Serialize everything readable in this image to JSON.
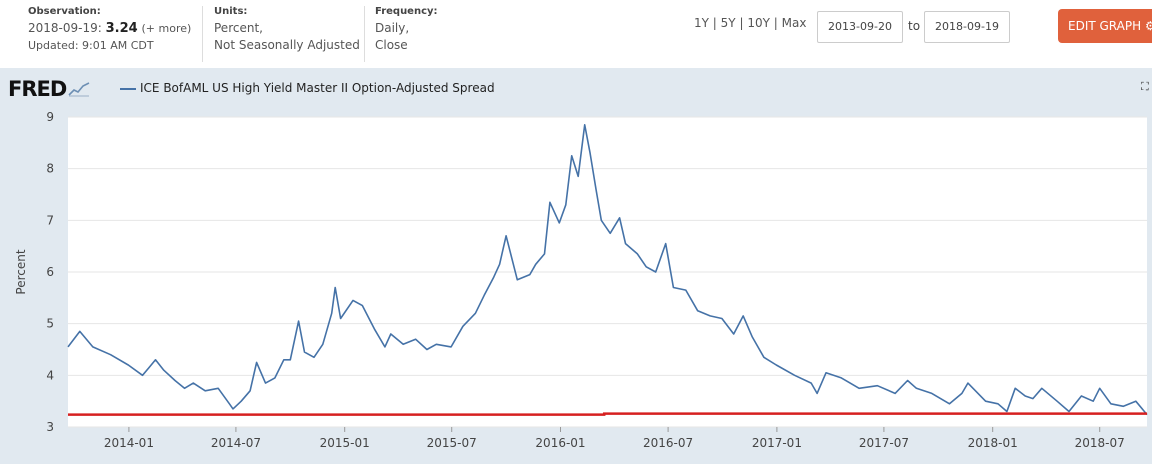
{
  "header": {
    "observation_label": "Observation:",
    "observation_date": "2018-09-19:",
    "observation_value": "3.24",
    "observation_more": "(+ more)",
    "updated": "Updated: 9:01 AM CDT",
    "units_label": "Units:",
    "units_line1": "Percent,",
    "units_line2": "Not Seasonally Adjusted",
    "frequency_label": "Frequency:",
    "frequency_line1": "Daily,",
    "frequency_line2": "Close",
    "range_1y": "1Y",
    "range_5y": "5Y",
    "range_10y": "10Y",
    "range_max": "Max",
    "range_sep": "|",
    "start_date": "2013-09-20",
    "to_label": "to",
    "end_date": "2018-09-19",
    "edit_button": "EDIT GRAPH",
    "gear_icon": "gear-icon"
  },
  "chart_data": {
    "type": "line",
    "logo": "FRED",
    "ylabel": "Percent",
    "ylim": [
      3,
      9
    ],
    "yticks": [
      3,
      4,
      5,
      6,
      7,
      8,
      9
    ],
    "xlim": [
      "2013-09-20",
      "2018-09-19"
    ],
    "xticks": [
      "2014-01",
      "2014-07",
      "2015-01",
      "2015-07",
      "2016-01",
      "2016-07",
      "2017-01",
      "2017-07",
      "2018-01",
      "2018-07"
    ],
    "grid": true,
    "legend_position": "top-left",
    "series": [
      {
        "name": "ICE BofAML US High Yield Master II Option-Adjusted Spread",
        "color": "#4572a7",
        "points": [
          [
            "2013-09-20",
            4.55
          ],
          [
            "2013-10-10",
            4.85
          ],
          [
            "2013-11-01",
            4.55
          ],
          [
            "2013-12-01",
            4.4
          ],
          [
            "2013-12-31",
            4.2
          ],
          [
            "2014-01-24",
            4.0
          ],
          [
            "2014-02-04",
            4.15
          ],
          [
            "2014-02-15",
            4.3
          ],
          [
            "2014-03-01",
            4.1
          ],
          [
            "2014-03-20",
            3.9
          ],
          [
            "2014-04-05",
            3.75
          ],
          [
            "2014-04-20",
            3.85
          ],
          [
            "2014-05-10",
            3.7
          ],
          [
            "2014-06-01",
            3.75
          ],
          [
            "2014-06-20",
            3.45
          ],
          [
            "2014-06-26",
            3.35
          ],
          [
            "2014-07-10",
            3.5
          ],
          [
            "2014-07-25",
            3.7
          ],
          [
            "2014-08-05",
            4.25
          ],
          [
            "2014-08-20",
            3.85
          ],
          [
            "2014-09-05",
            3.95
          ],
          [
            "2014-09-20",
            4.3
          ],
          [
            "2014-10-01",
            4.3
          ],
          [
            "2014-10-15",
            5.05
          ],
          [
            "2014-10-25",
            4.45
          ],
          [
            "2014-11-10",
            4.35
          ],
          [
            "2014-11-25",
            4.6
          ],
          [
            "2014-12-10",
            5.2
          ],
          [
            "2014-12-16",
            5.7
          ],
          [
            "2014-12-25",
            5.1
          ],
          [
            "2015-01-15",
            5.45
          ],
          [
            "2015-01-31",
            5.35
          ],
          [
            "2015-02-20",
            4.9
          ],
          [
            "2015-03-10",
            4.55
          ],
          [
            "2015-03-20",
            4.8
          ],
          [
            "2015-04-10",
            4.6
          ],
          [
            "2015-05-01",
            4.7
          ],
          [
            "2015-05-20",
            4.5
          ],
          [
            "2015-06-05",
            4.6
          ],
          [
            "2015-06-30",
            4.55
          ],
          [
            "2015-07-20",
            4.95
          ],
          [
            "2015-08-10",
            5.2
          ],
          [
            "2015-08-25",
            5.55
          ],
          [
            "2015-09-10",
            5.9
          ],
          [
            "2015-09-20",
            6.15
          ],
          [
            "2015-10-01",
            6.7
          ],
          [
            "2015-10-20",
            5.85
          ],
          [
            "2015-11-10",
            5.95
          ],
          [
            "2015-11-20",
            6.15
          ],
          [
            "2015-12-05",
            6.35
          ],
          [
            "2015-12-14",
            7.35
          ],
          [
            "2015-12-30",
            6.95
          ],
          [
            "2016-01-10",
            7.3
          ],
          [
            "2016-01-20",
            8.25
          ],
          [
            "2016-01-31",
            7.85
          ],
          [
            "2016-02-11",
            8.85
          ],
          [
            "2016-02-20",
            8.3
          ],
          [
            "2016-03-01",
            7.6
          ],
          [
            "2016-03-10",
            7.0
          ],
          [
            "2016-03-25",
            6.75
          ],
          [
            "2016-04-10",
            7.05
          ],
          [
            "2016-04-20",
            6.55
          ],
          [
            "2016-05-10",
            6.35
          ],
          [
            "2016-05-25",
            6.1
          ],
          [
            "2016-06-10",
            6.0
          ],
          [
            "2016-06-27",
            6.55
          ],
          [
            "2016-07-10",
            5.7
          ],
          [
            "2016-07-31",
            5.65
          ],
          [
            "2016-08-20",
            5.25
          ],
          [
            "2016-09-10",
            5.15
          ],
          [
            "2016-09-30",
            5.1
          ],
          [
            "2016-10-20",
            4.8
          ],
          [
            "2016-11-05",
            5.15
          ],
          [
            "2016-11-20",
            4.75
          ],
          [
            "2016-12-10",
            4.35
          ],
          [
            "2016-12-31",
            4.2
          ],
          [
            "2017-01-31",
            4.0
          ],
          [
            "2017-02-28",
            3.85
          ],
          [
            "2017-03-10",
            3.65
          ],
          [
            "2017-03-25",
            4.05
          ],
          [
            "2017-04-20",
            3.95
          ],
          [
            "2017-05-20",
            3.75
          ],
          [
            "2017-06-20",
            3.8
          ],
          [
            "2017-07-20",
            3.65
          ],
          [
            "2017-08-10",
            3.9
          ],
          [
            "2017-08-25",
            3.75
          ],
          [
            "2017-09-20",
            3.65
          ],
          [
            "2017-10-20",
            3.45
          ],
          [
            "2017-11-10",
            3.65
          ],
          [
            "2017-11-20",
            3.85
          ],
          [
            "2017-12-20",
            3.5
          ],
          [
            "2018-01-10",
            3.45
          ],
          [
            "2018-01-25",
            3.3
          ],
          [
            "2018-02-08",
            3.75
          ],
          [
            "2018-02-25",
            3.6
          ],
          [
            "2018-03-10",
            3.55
          ],
          [
            "2018-03-25",
            3.75
          ],
          [
            "2018-04-20",
            3.5
          ],
          [
            "2018-05-10",
            3.3
          ],
          [
            "2018-05-31",
            3.6
          ],
          [
            "2018-06-20",
            3.5
          ],
          [
            "2018-07-01",
            3.75
          ],
          [
            "2018-07-20",
            3.45
          ],
          [
            "2018-08-10",
            3.4
          ],
          [
            "2018-08-31",
            3.5
          ],
          [
            "2018-09-19",
            3.24
          ]
        ]
      }
    ],
    "reference_line": {
      "color": "#d62020",
      "points": [
        [
          "2013-09-20",
          3.24
        ],
        [
          "2016-03-15",
          3.24
        ],
        [
          "2016-03-15",
          3.26
        ],
        [
          "2018-09-19",
          3.26
        ]
      ]
    }
  }
}
